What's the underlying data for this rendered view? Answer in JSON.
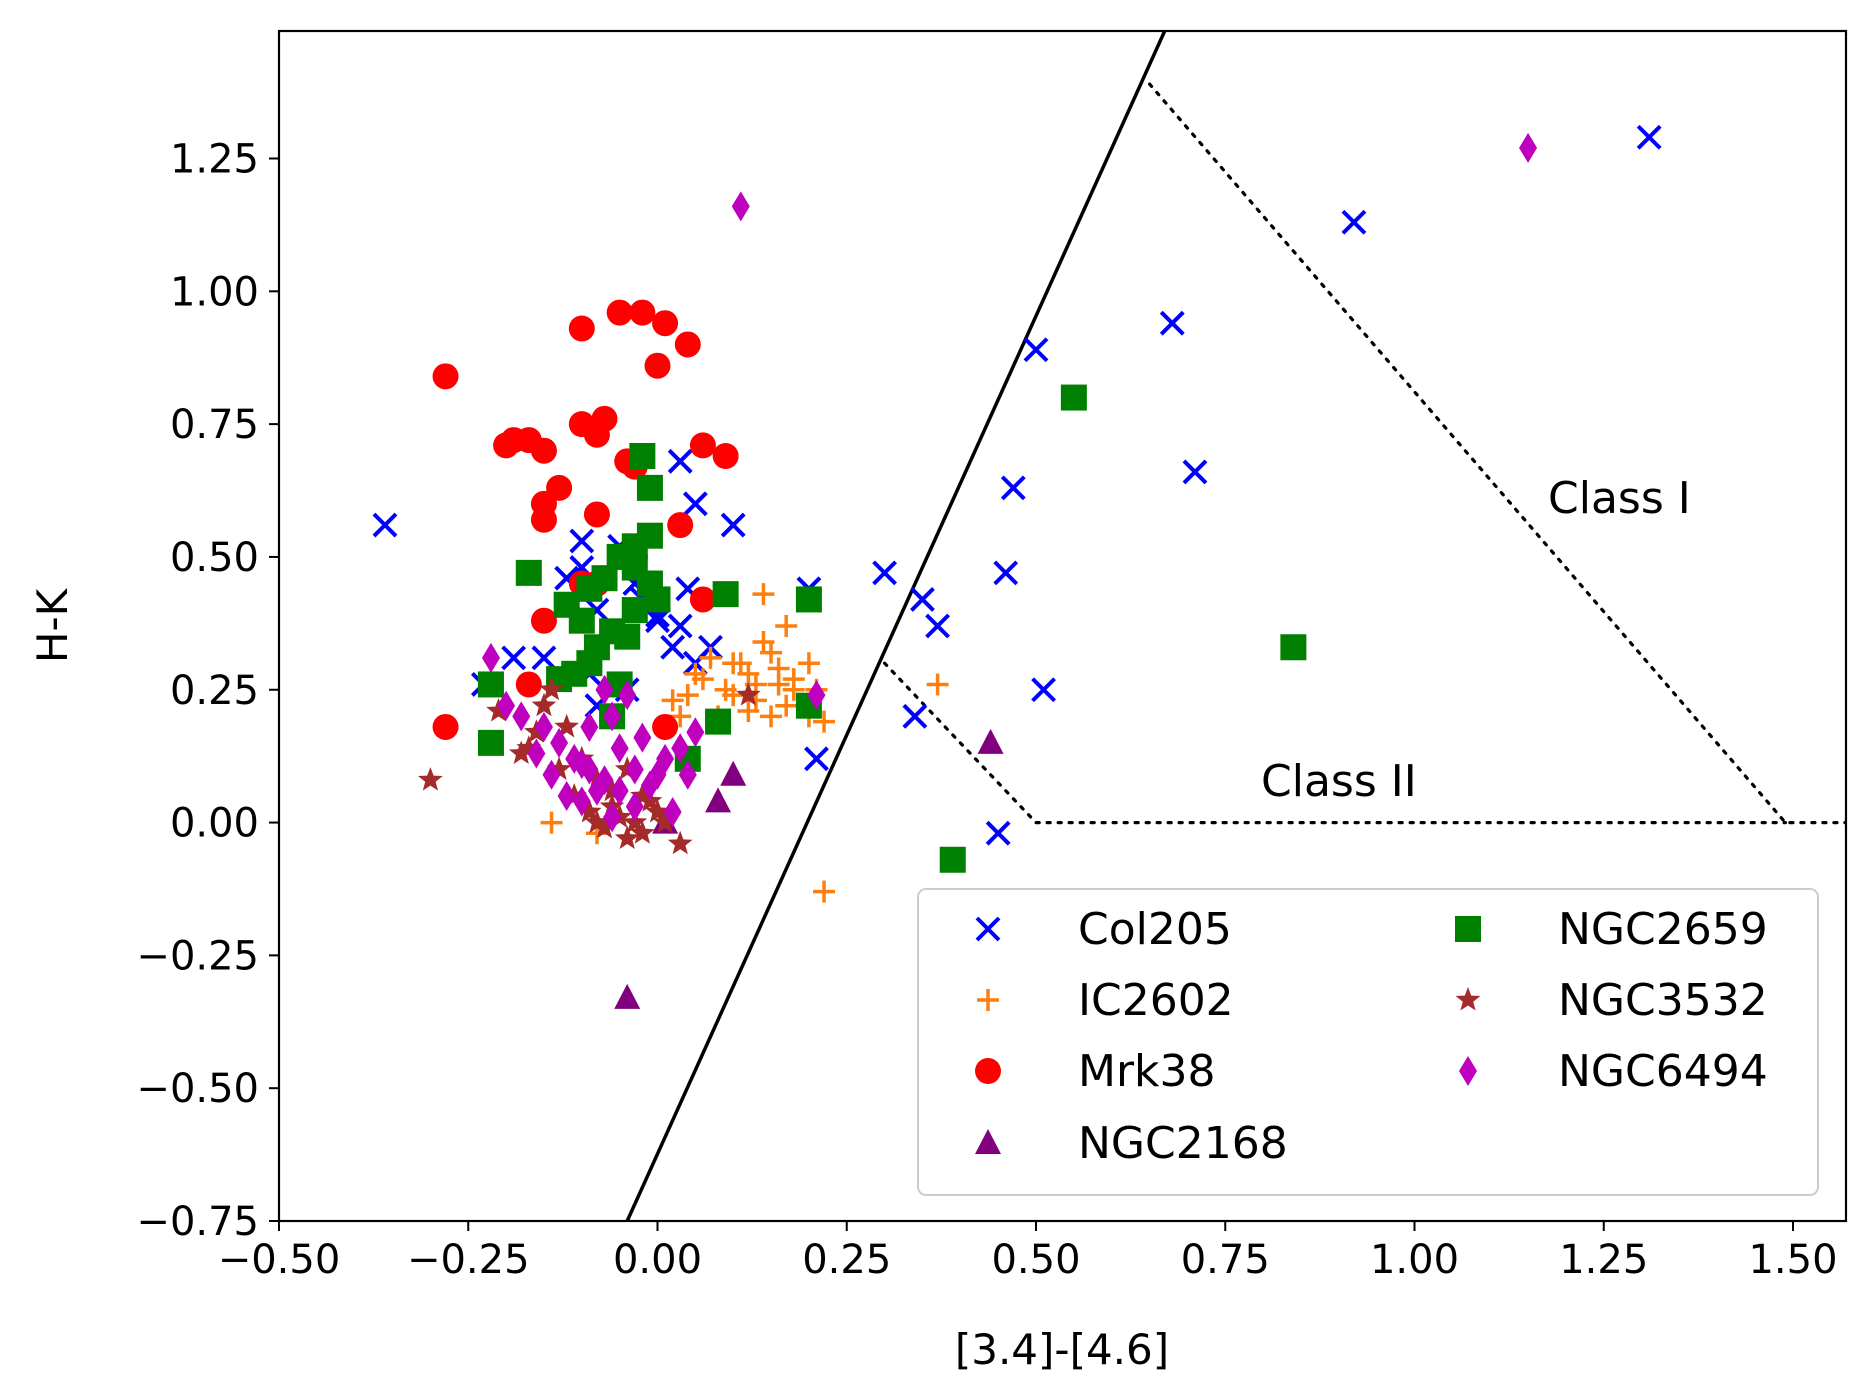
{
  "chart_data": {
    "type": "scatter",
    "title": "",
    "xlabel": "[3.4]-[4.6]",
    "ylabel": "H-K",
    "xlim": [
      -0.5,
      1.57
    ],
    "ylim": [
      -0.75,
      1.49
    ],
    "xticks": [
      -0.5,
      -0.25,
      0.0,
      0.25,
      0.5,
      0.75,
      1.0,
      1.25,
      1.5
    ],
    "yticks": [
      -0.75,
      -0.5,
      -0.25,
      0.0,
      0.25,
      0.5,
      0.75,
      1.0,
      1.25
    ],
    "xtick_labels": [
      "−0.50",
      "−0.25",
      "0.00",
      "0.25",
      "0.50",
      "0.75",
      "1.00",
      "1.25",
      "1.50"
    ],
    "ytick_labels": [
      "−0.75",
      "−0.50",
      "−0.25",
      "0.00",
      "0.25",
      "0.50",
      "0.75",
      "1.00",
      "1.25"
    ],
    "grid": false,
    "legend_position": "lower-right",
    "legend_columns": 2,
    "annotations": [
      {
        "text": "Class I",
        "x": 1.18,
        "y": 0.6
      },
      {
        "text": "Class II",
        "x": 0.8,
        "y": 0.07
      }
    ],
    "lines": [
      {
        "name": "solid-boundary",
        "style": "solid",
        "color": "#000000",
        "x": [
          -0.04,
          0.67
        ],
        "y": [
          -0.75,
          1.49
        ]
      },
      {
        "name": "class-i-boundary",
        "style": "dotted",
        "color": "#000000",
        "x": [
          0.65,
          1.49,
          1.57
        ],
        "y": [
          1.39,
          0.0,
          0.0
        ]
      },
      {
        "name": "class-ii-boundary",
        "style": "dotted",
        "color": "#000000",
        "x": [
          0.3,
          0.5,
          1.49
        ],
        "y": [
          0.3,
          0.0,
          0.0
        ]
      }
    ],
    "series": [
      {
        "name": "Col205",
        "marker": "x",
        "color": "#0000ff",
        "x": [
          -0.36,
          1.31,
          0.92,
          0.68,
          0.5,
          0.71,
          0.47,
          0.46,
          0.3,
          0.35,
          0.37,
          0.34,
          0.51,
          0.45,
          0.21,
          0.2,
          0.1,
          0.05,
          0.03,
          0.03,
          -0.1,
          -0.1,
          -0.08,
          -0.12,
          -0.06,
          -0.05,
          -0.03,
          0.0,
          0.02,
          0.04,
          0.05,
          0.07,
          -0.19,
          -0.23,
          -0.15,
          -0.09,
          -0.08,
          -0.04,
          0.0,
          -0.02
        ],
        "y": [
          0.56,
          1.29,
          1.13,
          0.94,
          0.89,
          0.66,
          0.63,
          0.47,
          0.47,
          0.42,
          0.37,
          0.2,
          0.25,
          -0.02,
          0.12,
          0.44,
          0.56,
          0.6,
          0.68,
          0.37,
          0.53,
          0.48,
          0.4,
          0.46,
          0.35,
          0.52,
          0.45,
          0.38,
          0.33,
          0.44,
          0.3,
          0.33,
          0.31,
          0.26,
          0.31,
          0.28,
          0.22,
          0.25,
          0.39,
          0.42
        ]
      },
      {
        "name": "IC2602",
        "marker": "+",
        "color": "#ff7f0e",
        "x": [
          0.22,
          0.37,
          0.14,
          0.17,
          0.1,
          0.12,
          0.15,
          0.18,
          0.13,
          0.16,
          0.19,
          0.08,
          0.06,
          0.04,
          0.02,
          0.11,
          0.14,
          0.2,
          0.09,
          0.16,
          0.12,
          0.18,
          0.05,
          0.07,
          0.13,
          0.1,
          0.15,
          0.17,
          0.21,
          0.22,
          0.03,
          -0.14,
          -0.08,
          0.2
        ],
        "y": [
          -0.13,
          0.26,
          0.43,
          0.37,
          0.3,
          0.28,
          0.32,
          0.25,
          0.23,
          0.26,
          0.22,
          0.2,
          0.27,
          0.24,
          0.23,
          0.3,
          0.34,
          0.3,
          0.25,
          0.29,
          0.21,
          0.27,
          0.28,
          0.31,
          0.26,
          0.24,
          0.2,
          0.22,
          0.25,
          0.19,
          0.2,
          0.0,
          -0.02,
          0.2
        ]
      },
      {
        "name": "Mrk38",
        "marker": "circle",
        "color": "#ff0000",
        "x": [
          -0.28,
          -0.05,
          -0.02,
          0.01,
          -0.1,
          0.04,
          0.0,
          -0.2,
          -0.19,
          -0.17,
          -0.15,
          -0.1,
          -0.08,
          -0.07,
          -0.08,
          -0.04,
          -0.03,
          0.06,
          0.09,
          -0.15,
          -0.13,
          -0.15,
          -0.08,
          0.03,
          -0.1,
          0.06,
          -0.28,
          -0.17,
          0.01,
          -0.15
        ],
        "y": [
          0.84,
          0.96,
          0.96,
          0.94,
          0.93,
          0.9,
          0.86,
          0.71,
          0.72,
          0.72,
          0.7,
          0.75,
          0.73,
          0.76,
          0.58,
          0.68,
          0.67,
          0.71,
          0.69,
          0.6,
          0.63,
          0.57,
          0.45,
          0.56,
          0.45,
          0.42,
          0.18,
          0.26,
          0.18,
          0.38
        ]
      },
      {
        "name": "NGC2168",
        "marker": "triangle",
        "color": "#800080",
        "x": [
          -0.04,
          0.44,
          0.1,
          0.08,
          0.01
        ],
        "y": [
          -0.33,
          0.15,
          0.09,
          0.04,
          0.0
        ]
      },
      {
        "name": "NGC2659",
        "marker": "square",
        "color": "#008000",
        "x": [
          0.55,
          0.84,
          0.39,
          -0.02,
          -0.01,
          -0.17,
          0.09,
          0.2,
          0.08,
          0.2,
          -0.22,
          -0.22,
          -0.01,
          -0.05,
          -0.07,
          -0.09,
          -0.03,
          -0.1,
          -0.06,
          -0.12,
          -0.03,
          -0.08,
          -0.01,
          0.0,
          -0.04,
          -0.09,
          -0.11,
          -0.05,
          -0.13,
          0.04,
          -0.06,
          -0.03
        ],
        "y": [
          0.8,
          0.33,
          -0.07,
          0.69,
          0.63,
          0.47,
          0.43,
          0.42,
          0.19,
          0.22,
          0.26,
          0.15,
          0.54,
          0.5,
          0.46,
          0.44,
          0.4,
          0.38,
          0.36,
          0.41,
          0.48,
          0.33,
          0.45,
          0.42,
          0.35,
          0.3,
          0.28,
          0.26,
          0.27,
          0.12,
          0.2,
          0.52
        ]
      },
      {
        "name": "NGC3532",
        "marker": "star",
        "color": "#a52a2a",
        "x": [
          -0.3,
          -0.21,
          -0.18,
          -0.17,
          -0.15,
          -0.13,
          -0.11,
          -0.09,
          -0.08,
          -0.07,
          -0.06,
          -0.05,
          -0.04,
          -0.03,
          -0.02,
          -0.01,
          0.0,
          0.01,
          0.03,
          0.12,
          -0.12,
          -0.1,
          -0.08,
          -0.06,
          -0.04,
          -0.02,
          -0.14,
          -0.16
        ],
        "y": [
          0.08,
          0.21,
          0.13,
          0.14,
          0.22,
          0.1,
          0.05,
          0.02,
          0.0,
          -0.01,
          0.03,
          0.01,
          -0.03,
          0.0,
          -0.02,
          0.04,
          0.02,
          0.0,
          -0.04,
          0.24,
          0.18,
          0.12,
          0.08,
          0.06,
          0.1,
          0.05,
          0.25,
          0.17
        ]
      },
      {
        "name": "NGC6494",
        "marker": "diamond",
        "color": "#bf00bf",
        "x": [
          1.15,
          0.11,
          0.21,
          -0.22,
          -0.2,
          -0.18,
          -0.15,
          -0.13,
          -0.11,
          -0.09,
          -0.07,
          -0.05,
          -0.03,
          -0.01,
          0.01,
          0.03,
          0.05,
          -0.12,
          -0.1,
          -0.08,
          -0.06,
          -0.04,
          -0.02,
          0.0,
          0.02,
          -0.14,
          -0.16,
          -0.09,
          -0.07,
          -0.05,
          -0.03,
          -0.1,
          -0.06,
          0.04
        ],
        "y": [
          1.27,
          1.16,
          0.24,
          0.31,
          0.22,
          0.2,
          0.18,
          0.15,
          0.12,
          0.1,
          0.08,
          0.06,
          0.1,
          0.07,
          0.12,
          0.14,
          0.17,
          0.05,
          0.04,
          0.06,
          0.2,
          0.24,
          0.16,
          0.09,
          0.02,
          0.09,
          0.13,
          0.18,
          0.25,
          0.14,
          0.03,
          0.11,
          0.01,
          0.09
        ]
      }
    ]
  }
}
